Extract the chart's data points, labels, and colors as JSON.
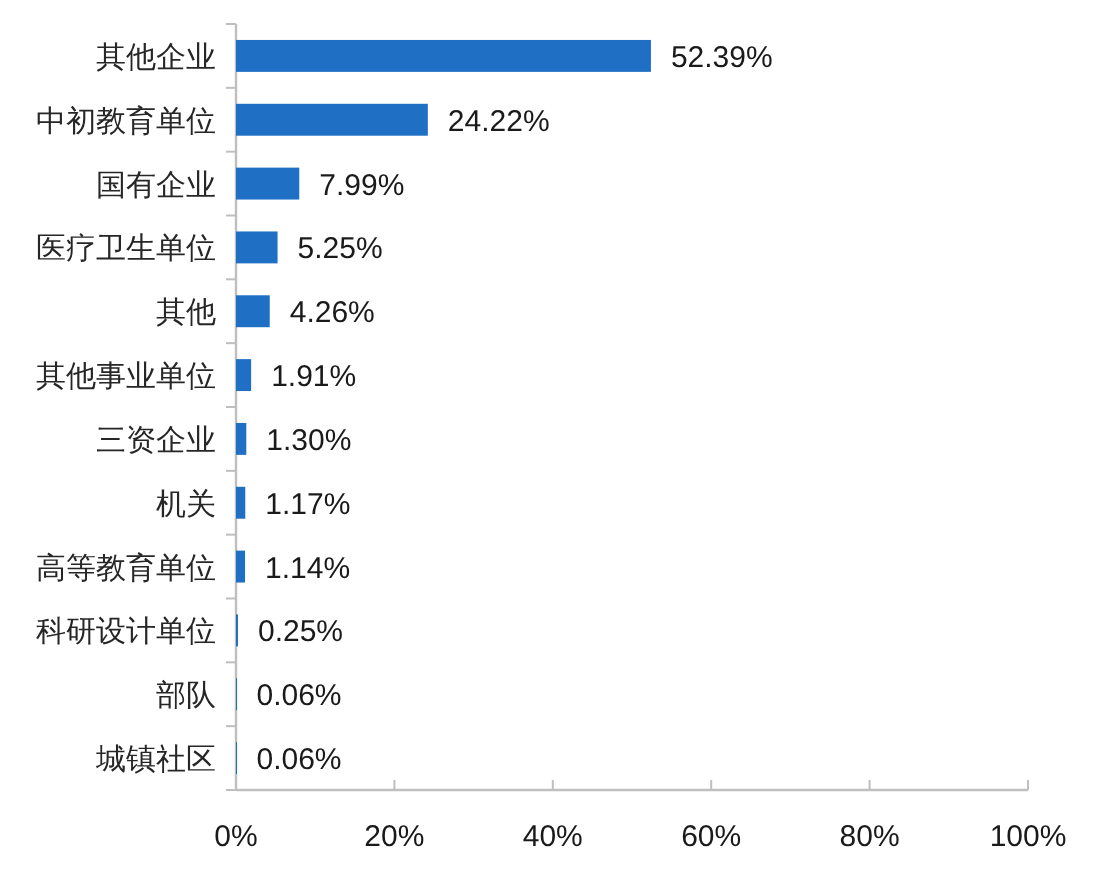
{
  "chart_data": {
    "type": "bar",
    "orientation": "horizontal",
    "categories": [
      "其他企业",
      "中初教育单位",
      "国有企业",
      "医疗卫生单位",
      "其他",
      "其他事业单位",
      "三资企业",
      "机关",
      "高等教育单位",
      "科研设计单位",
      "部队",
      "城镇社区"
    ],
    "values": [
      52.39,
      24.22,
      7.99,
      5.25,
      4.26,
      1.91,
      1.3,
      1.17,
      1.14,
      0.25,
      0.06,
      0.06
    ],
    "value_labels": [
      "52.39%",
      "24.22%",
      "7.99%",
      "5.25%",
      "4.26%",
      "1.91%",
      "1.30%",
      "1.17%",
      "1.14%",
      "0.25%",
      "0.06%",
      "0.06%"
    ],
    "color": "#1f6fc4",
    "xlim": [
      0,
      100
    ],
    "xticks": [
      {
        "value": 0,
        "label": "0%"
      },
      {
        "value": 20,
        "label": "20%"
      },
      {
        "value": 40,
        "label": "40%"
      },
      {
        "value": 60,
        "label": "60%"
      },
      {
        "value": 80,
        "label": "80%"
      },
      {
        "value": 100,
        "label": "100%"
      }
    ]
  }
}
